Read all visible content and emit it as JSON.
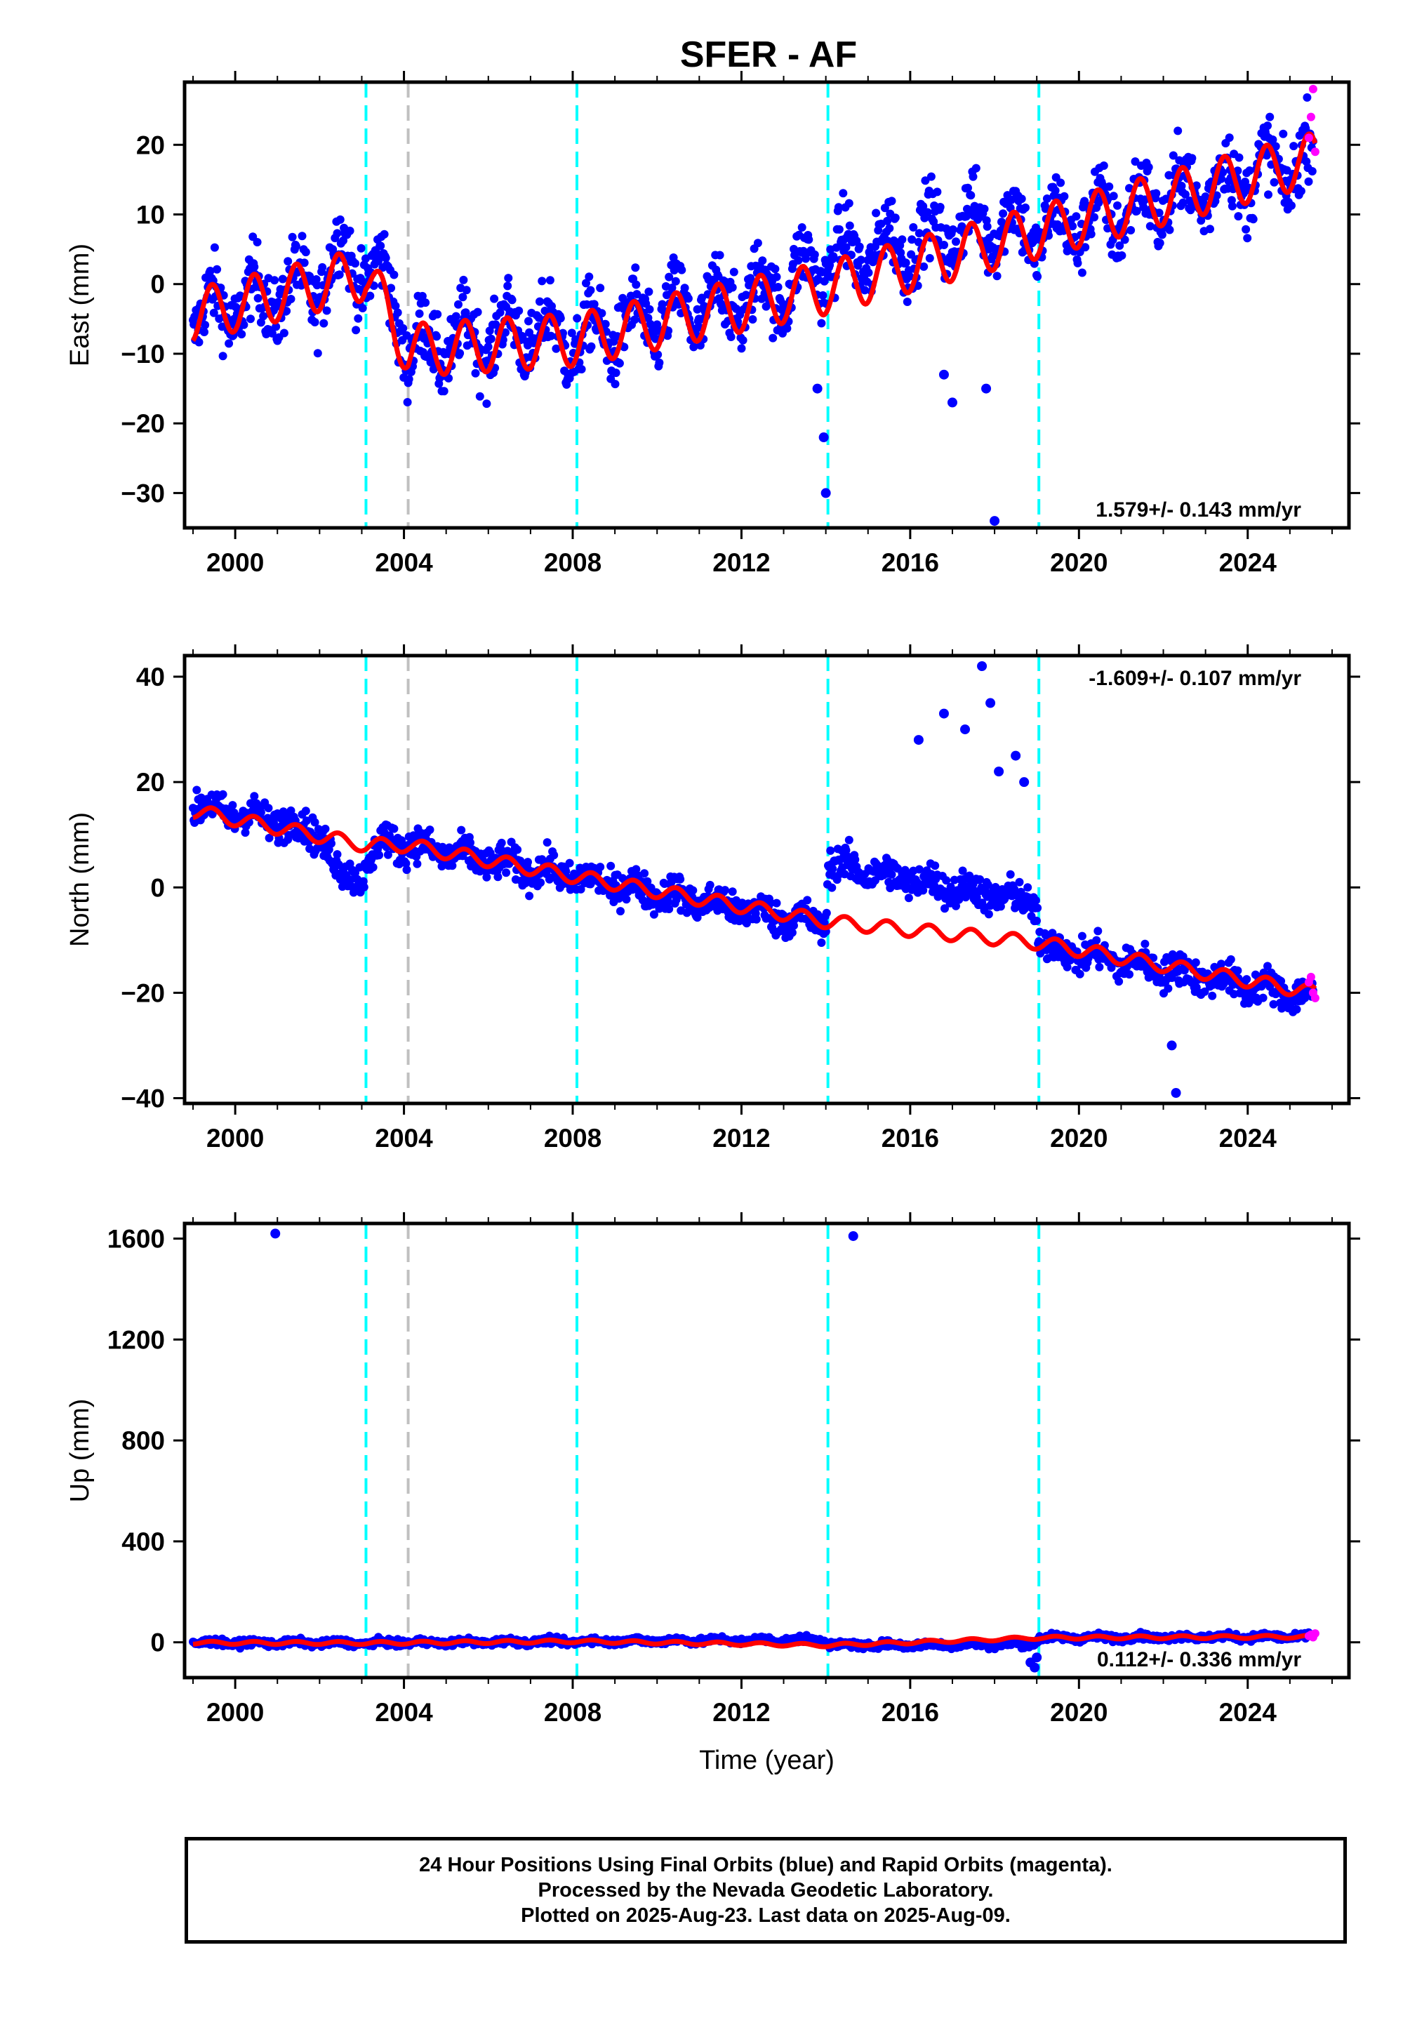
{
  "title": "SFER - AF",
  "xlabel": "Time (year)",
  "footer": {
    "line1": "24 Hour Positions Using Final Orbits (blue) and Rapid Orbits (magenta).",
    "line2": "Processed by the Nevada Geodetic Laboratory.",
    "line3": "Plotted on 2025-Aug-23. Last data on 2025-Aug-09."
  },
  "colors": {
    "final_orbits": "#0000ff",
    "rapid_orbits": "#ff00ff",
    "model": "#ff0000",
    "equipment_change": "#00ffff",
    "other_event": "#c0c0c0"
  },
  "chart_data": [
    {
      "type": "scatter",
      "ylabel": "East (mm)",
      "xlim": [
        1998.8,
        2026.4
      ],
      "ylim": [
        -35,
        29
      ],
      "xticks": [
        2000,
        2004,
        2008,
        2012,
        2016,
        2020,
        2024
      ],
      "xtick_labels": [
        "2000",
        "2004",
        "2008",
        "2012",
        "2016",
        "2020",
        "2024"
      ],
      "yticks": [
        -30,
        -20,
        -10,
        0,
        10,
        20
      ],
      "ytick_labels": [
        "−30",
        "−20",
        "−10",
        "0",
        "10",
        "20"
      ],
      "rate": "1.579+/- 0.143 mm/yr",
      "rate_position": "bottom-right",
      "equipment_changes": [
        2003.1,
        2008.1,
        2014.05,
        2019.05
      ],
      "other_events": [
        2004.1
      ],
      "model_offsets": [
        {
          "from": 2004.1,
          "shift": -9.0
        },
        {
          "from": 2008.1,
          "shift": 1.0
        },
        {
          "from": 2014.05,
          "shift": 4.8
        },
        {
          "from": 2019.05,
          "shift": -4.0
        }
      ],
      "model": {
        "x": [
          1999.0,
          2003.1,
          2004.1,
          2008.1,
          2014.05,
          2019.05,
          2025.6
        ],
        "y": [
          -4.5,
          1.5,
          -9.5,
          -8.0,
          -0.5,
          7.5,
          18.0
        ],
        "seasonal_amp": 3.8
      },
      "final_orbits": {
        "x": [
          1999.0,
          2000.0,
          2001.0,
          2002.0,
          2002.6,
          2003.1,
          2003.6,
          2004.1,
          2005.0,
          2006.0,
          2007.0,
          2008.1,
          2009.0,
          2010.0,
          2011.0,
          2012.0,
          2013.0,
          2014.05,
          2015.0,
          2016.0,
          2017.0,
          2018.0,
          2019.05,
          2020.0,
          2021.0,
          2022.0,
          2023.0,
          2024.0,
          2025.0,
          2025.55
        ],
        "y": [
          -4.5,
          -3.0,
          -1.5,
          0.0,
          4.5,
          1.5,
          0.5,
          -9.5,
          -8.5,
          -7.5,
          -6.5,
          -8.0,
          -6.5,
          -5.0,
          -3.5,
          -2.0,
          -0.5,
          3.5,
          4.5,
          6.0,
          7.5,
          9.0,
          7.5,
          9.0,
          10.5,
          12.0,
          14.0,
          15.5,
          17.0,
          18.0
        ],
        "scatter": 4.0
      },
      "outliers": {
        "x": [
          2013.8,
          2013.95,
          2014.0,
          2016.8,
          2017.0,
          2017.8,
          2018.0
        ],
        "y": [
          -15,
          -22,
          -30,
          -13,
          -17,
          -15,
          -34
        ]
      },
      "rapid_orbits": {
        "x": [
          2025.45,
          2025.5,
          2025.55,
          2025.6
        ],
        "y": [
          21,
          24,
          28,
          19
        ]
      }
    },
    {
      "type": "scatter",
      "ylabel": "North (mm)",
      "xlim": [
        1998.8,
        2026.4
      ],
      "ylim": [
        -41,
        44
      ],
      "xticks": [
        2000,
        2004,
        2008,
        2012,
        2016,
        2020,
        2024
      ],
      "xtick_labels": [
        "2000",
        "2004",
        "2008",
        "2012",
        "2016",
        "2020",
        "2024"
      ],
      "yticks": [
        -40,
        -20,
        0,
        20,
        40
      ],
      "ytick_labels": [
        "−40",
        "−20",
        "0",
        "20",
        "40"
      ],
      "rate": "-1.609+/- 0.107 mm/yr",
      "rate_position": "top-right",
      "equipment_changes": [
        2003.1,
        2008.1,
        2014.05,
        2019.05
      ],
      "other_events": [
        2004.1
      ],
      "model": {
        "x": [
          1999.0,
          2003.1,
          2004.1,
          2008.1,
          2014.05,
          2019.05,
          2025.6
        ],
        "y": [
          14.5,
          8.0,
          8.0,
          2.0,
          -6.5,
          -10.5,
          -20.0
        ],
        "seasonal_amp": 1.3
      },
      "final_orbits": {
        "x": [
          1999.0,
          2000.0,
          2001.0,
          2002.0,
          2002.5,
          2003.1,
          2003.5,
          2004.1,
          2005.0,
          2006.0,
          2007.0,
          2008.1,
          2009.0,
          2010.0,
          2011.0,
          2012.0,
          2013.0,
          2014.0,
          2014.05,
          2015.0,
          2016.0,
          2017.0,
          2018.0,
          2019.0,
          2019.05,
          2020.0,
          2021.0,
          2022.0,
          2023.0,
          2024.0,
          2025.0,
          2025.55
        ],
        "y": [
          15.5,
          14.0,
          12.5,
          10.5,
          2.0,
          3.0,
          9.0,
          8.0,
          6.5,
          5.0,
          3.5,
          2.0,
          0.5,
          -1.0,
          -2.5,
          -4.0,
          -5.5,
          -7.0,
          4.5,
          3.0,
          1.5,
          0.0,
          -1.5,
          -3.0,
          -11.0,
          -12.5,
          -14.0,
          -15.5,
          -17.0,
          -18.5,
          -20.0,
          -21.0
        ],
        "scatter": 2.5
      },
      "outliers": {
        "x": [
          2016.2,
          2016.8,
          2017.3,
          2017.7,
          2017.9,
          2018.1,
          2018.5,
          2018.7,
          2022.2,
          2022.3
        ],
        "y": [
          28,
          33,
          30,
          42,
          35,
          22,
          25,
          20,
          -30,
          -39
        ]
      },
      "rapid_orbits": {
        "x": [
          2025.45,
          2025.5,
          2025.55,
          2025.6
        ],
        "y": [
          -18,
          -17,
          -20,
          -21
        ]
      }
    },
    {
      "type": "scatter",
      "ylabel": "Up (mm)",
      "xlim": [
        1998.8,
        2026.4
      ],
      "ylim": [
        -140,
        1660
      ],
      "xticks": [
        2000,
        2004,
        2008,
        2012,
        2016,
        2020,
        2024
      ],
      "xtick_labels": [
        "2000",
        "2004",
        "2008",
        "2012",
        "2016",
        "2020",
        "2024"
      ],
      "yticks": [
        0,
        400,
        800,
        1200,
        1600
      ],
      "ytick_labels": [
        "0",
        "400",
        "800",
        "1200",
        "1600"
      ],
      "rate": "0.112+/- 0.336 mm/yr",
      "rate_position": "bottom-right",
      "equipment_changes": [
        2003.1,
        2008.1,
        2014.05,
        2019.05
      ],
      "other_events": [
        2004.1
      ],
      "model": {
        "x": [
          1999.0,
          2003.1,
          2004.1,
          2008.1,
          2014.05,
          2019.05,
          2025.6
        ],
        "y": [
          -2,
          -3,
          -2,
          4,
          -12,
          18,
          22
        ],
        "seasonal_amp": 6
      },
      "final_orbits": {
        "x": [
          1999.0,
          2003.1,
          2004.1,
          2008.1,
          2014.0,
          2014.05,
          2016.0,
          2018.9,
          2019.05,
          2022.0,
          2025.55
        ],
        "y": [
          -2,
          -3,
          -2,
          4,
          10,
          -12,
          -10,
          -8,
          18,
          20,
          22
        ],
        "scatter": 10
      },
      "outliers": {
        "x": [
          2000.95,
          2014.65,
          2018.85,
          2018.95,
          2019.0
        ],
        "y": [
          1620,
          1610,
          -80,
          -100,
          -60
        ]
      },
      "rapid_orbits": {
        "x": [
          2025.45,
          2025.5,
          2025.55,
          2025.6
        ],
        "y": [
          25,
          30,
          20,
          35
        ]
      }
    }
  ]
}
